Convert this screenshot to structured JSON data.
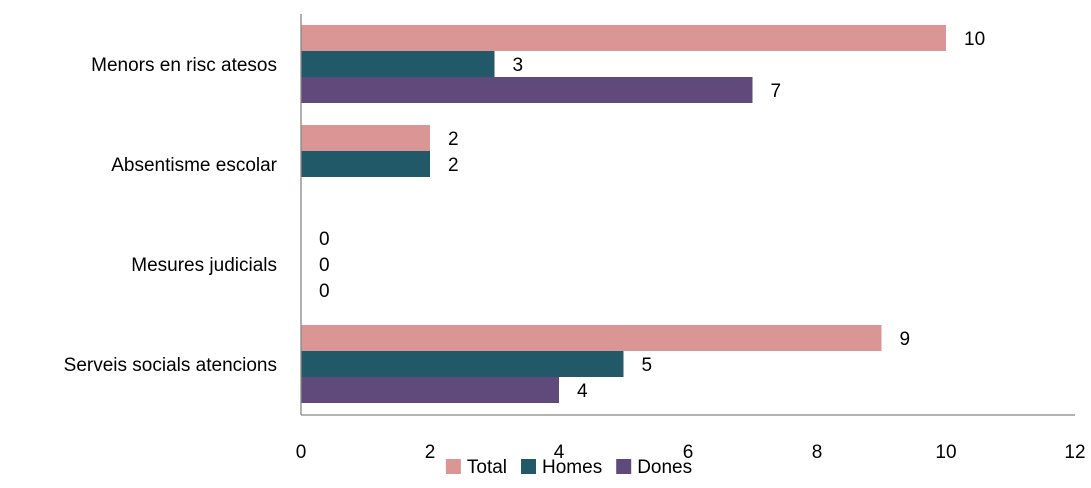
{
  "chart_data": {
    "type": "bar",
    "orientation": "horizontal",
    "categories": [
      "Menors en risc atesos",
      "Absentisme escolar",
      "Mesures judicials",
      "Serveis socials atencions"
    ],
    "series": [
      {
        "name": "Total",
        "color": "#D99694",
        "values": [
          10,
          2,
          0,
          9
        ]
      },
      {
        "name": "Homes",
        "color": "#215968",
        "values": [
          3,
          2,
          0,
          5
        ]
      },
      {
        "name": "Dones",
        "color": "#604A7B",
        "values": [
          7,
          null,
          0,
          4
        ]
      }
    ],
    "xlim": [
      0,
      12
    ],
    "xticks": [
      0,
      2,
      4,
      6,
      8,
      10,
      12
    ],
    "grid": false,
    "legend_position": "bottom"
  }
}
